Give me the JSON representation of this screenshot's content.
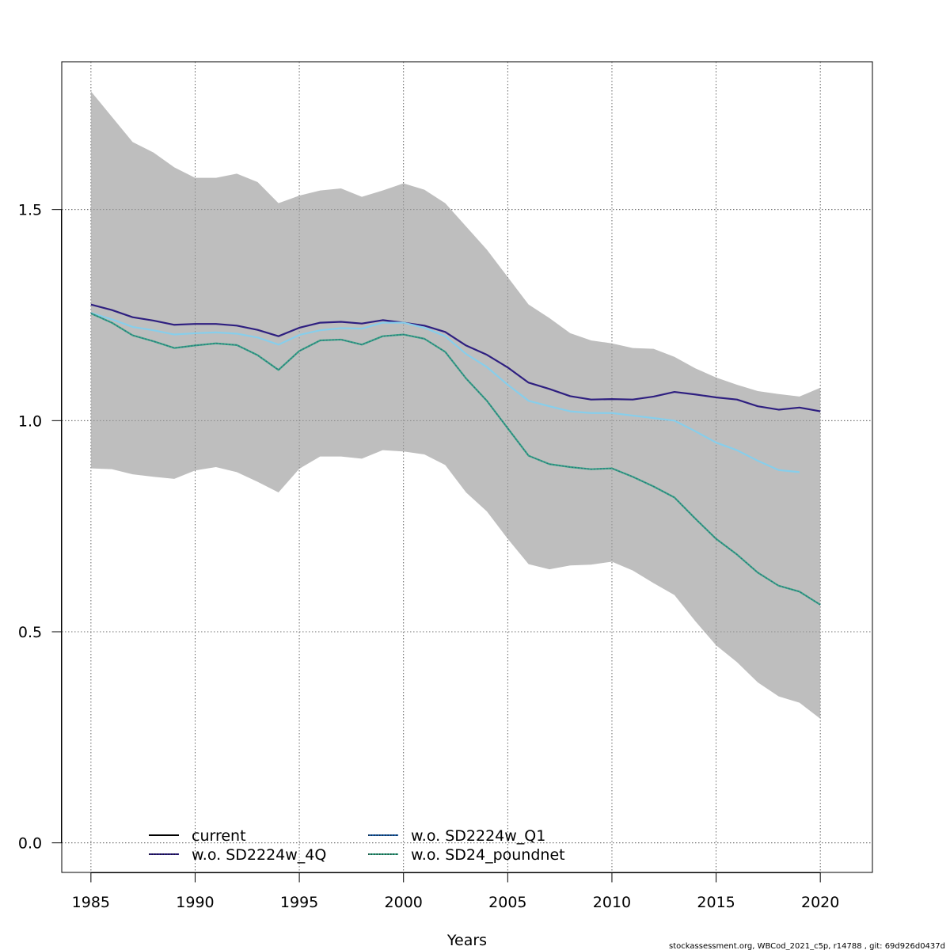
{
  "chart_data": {
    "type": "line",
    "xlabel": "Years",
    "ylabel": "",
    "xlim": [
      1983.6,
      2022.5
    ],
    "ylim": [
      -0.07,
      1.85
    ],
    "x_ticks": [
      1985,
      1990,
      1995,
      2000,
      2005,
      2010,
      2015,
      2020
    ],
    "y_ticks": [
      0.0,
      0.5,
      1.0,
      1.5
    ],
    "x_tick_labels": [
      "1985",
      "1990",
      "1995",
      "2000",
      "2005",
      "2010",
      "2015",
      "2020"
    ],
    "y_tick_labels": [
      "0.0",
      "0.5",
      "1.0",
      "1.5"
    ],
    "grid": true,
    "legend_position": "bottom-left",
    "footnote": "stockassessment.org, WBCod_2021_c5p, r14788 , git: 69d926d0437d",
    "band": {
      "color": "#bebebe",
      "x": [
        1985,
        1986,
        1987,
        1988,
        1989,
        1990,
        1991,
        1992,
        1993,
        1994,
        1995,
        1996,
        1997,
        1998,
        1999,
        2000,
        2001,
        2002,
        2003,
        2004,
        2005,
        2006,
        2007,
        2008,
        2009,
        2010,
        2011,
        2012,
        2013,
        2014,
        2015,
        2016,
        2017,
        2018,
        2019,
        2020
      ],
      "upper": [
        1.78,
        1.72,
        1.66,
        1.635,
        1.6,
        1.575,
        1.575,
        1.585,
        1.565,
        1.515,
        1.533,
        1.545,
        1.55,
        1.53,
        1.545,
        1.562,
        1.547,
        1.515,
        1.46,
        1.405,
        1.34,
        1.275,
        1.243,
        1.207,
        1.19,
        1.183,
        1.172,
        1.17,
        1.151,
        1.124,
        1.102,
        1.085,
        1.07,
        1.063,
        1.057,
        1.078
      ],
      "lower": [
        0.887,
        0.885,
        0.873,
        0.867,
        0.862,
        0.882,
        0.89,
        0.878,
        0.855,
        0.83,
        0.886,
        0.915,
        0.915,
        0.91,
        0.93,
        0.927,
        0.92,
        0.895,
        0.83,
        0.785,
        0.72,
        0.66,
        0.648,
        0.657,
        0.659,
        0.666,
        0.645,
        0.615,
        0.587,
        0.525,
        0.468,
        0.428,
        0.38,
        0.347,
        0.332,
        0.294
      ]
    },
    "series": [
      {
        "name": "w.o. SD2224w_4Q",
        "color": "#2e1f80",
        "x": [
          1985,
          1986,
          1987,
          1988,
          1989,
          1990,
          1991,
          1992,
          1993,
          1994,
          1995,
          1996,
          1997,
          1998,
          1999,
          2000,
          2001,
          2002,
          2003,
          2004,
          2005,
          2006,
          2007,
          2008,
          2009,
          2010,
          2011,
          2012,
          2013,
          2014,
          2015,
          2016,
          2017,
          2018,
          2019,
          2020
        ],
        "values": [
          1.275,
          1.262,
          1.245,
          1.237,
          1.227,
          1.229,
          1.229,
          1.225,
          1.215,
          1.2,
          1.22,
          1.232,
          1.234,
          1.23,
          1.238,
          1.232,
          1.225,
          1.21,
          1.178,
          1.156,
          1.126,
          1.09,
          1.075,
          1.058,
          1.05,
          1.051,
          1.05,
          1.057,
          1.068,
          1.062,
          1.055,
          1.05,
          1.034,
          1.026,
          1.031,
          1.022
        ]
      },
      {
        "name": "w.o. SD2224w_Q1",
        "color": "#87ceeb",
        "x": [
          1985,
          1986,
          1987,
          1988,
          1989,
          1990,
          1991,
          1992,
          1993,
          1994,
          1995,
          1996,
          1997,
          1998,
          1999,
          2000,
          2001,
          2002,
          2003,
          2004,
          2005,
          2006,
          2007,
          2008,
          2009,
          2010,
          2011,
          2012,
          2013,
          2014,
          2015,
          2016,
          2017,
          2018,
          2019
        ],
        "values": [
          1.255,
          1.24,
          1.222,
          1.214,
          1.204,
          1.207,
          1.209,
          1.206,
          1.197,
          1.18,
          1.203,
          1.214,
          1.219,
          1.218,
          1.232,
          1.232,
          1.22,
          1.2,
          1.158,
          1.127,
          1.085,
          1.047,
          1.034,
          1.022,
          1.018,
          1.018,
          1.012,
          1.006,
          1.0,
          0.975,
          0.948,
          0.93,
          0.905,
          0.883,
          0.878
        ]
      },
      {
        "name": "w.o. SD24_poundnet",
        "color": "#3aa686",
        "x": [
          1985,
          1986,
          1987,
          1988,
          1989,
          1990,
          1991,
          1992,
          1993,
          1994,
          1995,
          1996,
          1997,
          1998,
          1999,
          2000,
          2001,
          2002,
          2003,
          2004,
          2005,
          2006,
          2007,
          2008,
          2009,
          2010,
          2011,
          2012,
          2013,
          2014,
          2015,
          2016,
          2017,
          2018,
          2019,
          2020
        ],
        "values": [
          1.254,
          1.232,
          1.202,
          1.188,
          1.172,
          1.178,
          1.183,
          1.179,
          1.155,
          1.12,
          1.165,
          1.19,
          1.192,
          1.18,
          1.2,
          1.204,
          1.194,
          1.163,
          1.1,
          1.047,
          0.982,
          0.917,
          0.897,
          0.89,
          0.885,
          0.887,
          0.867,
          0.844,
          0.818,
          0.768,
          0.72,
          0.683,
          0.64,
          0.609,
          0.595,
          0.564
        ]
      },
      {
        "name": "current",
        "color": "#2b6f80",
        "x": [
          1985,
          1986,
          1987,
          1988,
          1989,
          1990,
          1991,
          1992,
          1993,
          1994,
          1995,
          1996,
          1997,
          1998,
          1999,
          2000,
          2001,
          2002,
          2003,
          2004,
          2005,
          2006,
          2007,
          2008,
          2009,
          2010,
          2011,
          2012,
          2013,
          2014,
          2015,
          2016,
          2017,
          2018,
          2019,
          2020
        ],
        "values": [
          1.254,
          1.232,
          1.202,
          1.188,
          1.172,
          1.178,
          1.183,
          1.179,
          1.155,
          1.12,
          1.165,
          1.19,
          1.192,
          1.18,
          1.2,
          1.204,
          1.194,
          1.163,
          1.1,
          1.047,
          0.982,
          0.917,
          0.897,
          0.89,
          0.885,
          0.887,
          0.867,
          0.844,
          0.818,
          0.768,
          0.72,
          0.683,
          0.64,
          0.609,
          0.595,
          0.564
        ]
      }
    ],
    "legend": [
      {
        "label": "current",
        "color": "#000000",
        "dash": "solid"
      },
      {
        "label": "w.o. SD2224w_4Q",
        "color": "#2e1f80",
        "dash": "dotted"
      },
      {
        "label": "w.o. SD2224w_Q1",
        "color": "#1e5fa8",
        "dash": "dotted"
      },
      {
        "label": "w.o. SD24_poundnet",
        "color": "#3aa686",
        "dash": "dotted"
      }
    ]
  }
}
